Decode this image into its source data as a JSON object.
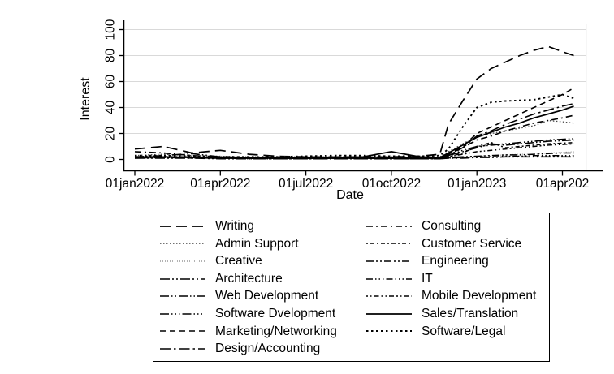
{
  "figure": {
    "background": "#ffffff",
    "axis_color": "#000000",
    "grid_color": "#d9d9d9",
    "plot_right_border_color": "#ececec"
  },
  "chart_data": {
    "type": "line",
    "title": "",
    "xlabel": "Date",
    "ylabel": "Interest",
    "grid": "horizontal",
    "legend_position": "below",
    "ylim": [
      0,
      100
    ],
    "y_ticks": [
      0,
      20,
      40,
      60,
      80,
      100
    ],
    "x_unit": "months since 01jan2022",
    "x_ticks": [
      {
        "pos": 0,
        "label": "01jan2022"
      },
      {
        "pos": 3,
        "label": "01apr2022"
      },
      {
        "pos": 6,
        "label": "01jul2022"
      },
      {
        "pos": 9,
        "label": "01oct2022"
      },
      {
        "pos": 12,
        "label": "01jan2023"
      },
      {
        "pos": 15,
        "label": "01apr202"
      }
    ],
    "x": [
      0,
      1,
      2,
      3,
      4,
      5,
      6,
      7,
      8,
      9,
      10,
      10.7,
      11,
      11.5,
      12,
      12.5,
      13,
      13.5,
      14,
      14.5,
      15,
      15.4
    ],
    "series": [
      {
        "name": "Writing",
        "dash": "long-dash",
        "color": "#000000",
        "values": [
          8,
          10,
          5,
          7,
          4,
          2.5,
          2,
          2,
          2,
          2,
          2.5,
          4,
          27,
          45,
          62,
          70,
          75,
          80,
          84,
          87,
          83,
          80
        ]
      },
      {
        "name": "Admin Support",
        "dash": "dot-fine",
        "color": "#444444",
        "values": [
          3,
          4,
          3,
          2.5,
          2,
          2,
          2,
          2,
          2,
          2,
          2,
          2,
          6,
          12,
          18,
          20,
          22,
          24,
          26,
          30,
          29,
          28
        ]
      },
      {
        "name": "Creative",
        "dash": "dot-micro",
        "color": "#999999",
        "values": [
          2,
          2.5,
          2,
          1.5,
          1.5,
          1,
          1,
          1,
          1,
          1,
          1,
          1,
          1.5,
          2,
          2.5,
          3,
          3.5,
          4,
          4,
          5,
          5.5,
          6
        ]
      },
      {
        "name": "Architecture",
        "dash": "longdash-dotdot",
        "color": "#000000",
        "values": [
          1,
          1,
          1,
          0.5,
          0.5,
          0.5,
          0.5,
          0.5,
          0.5,
          0.5,
          0.5,
          0.5,
          1,
          1,
          1.5,
          1.5,
          2,
          2,
          2,
          2,
          2,
          2
        ]
      },
      {
        "name": "Web Development",
        "dash": "longdash-dotdot-fine",
        "color": "#000000",
        "values": [
          2,
          3,
          4.5,
          2,
          1.5,
          1,
          1,
          1,
          1,
          1,
          1,
          1,
          3,
          6,
          9,
          12,
          11,
          12,
          13,
          14,
          14.5,
          15
        ]
      },
      {
        "name": "Software Dvelopment",
        "dash": "longdash-3dot",
        "color": "#000000",
        "values": [
          2,
          2,
          2,
          1.5,
          1,
          1,
          1,
          1,
          1,
          1,
          1,
          1,
          3,
          7,
          10,
          11,
          12,
          13,
          14,
          15,
          15.5,
          16
        ]
      },
      {
        "name": "Marketing/Networking",
        "dash": "dash-medium",
        "color": "#000000",
        "values": [
          2,
          2,
          1.5,
          1.5,
          1,
          1,
          1,
          1,
          1,
          1,
          1,
          1.5,
          4,
          10,
          20,
          25,
          30,
          35,
          40,
          45,
          50,
          55
        ]
      },
      {
        "name": "Design/Accounting",
        "dash": "longdash-dot",
        "color": "#000000",
        "values": [
          1.5,
          2,
          1.5,
          1,
          1,
          1,
          1,
          1,
          1,
          1,
          1,
          1,
          3,
          9,
          18,
          22,
          27,
          31,
          35,
          38,
          41,
          43
        ]
      },
      {
        "name": "Consulting",
        "dash": "dash-dot",
        "color": "#000000",
        "values": [
          6,
          5,
          3,
          2,
          1.5,
          1,
          1,
          1,
          1,
          1,
          1,
          1,
          4,
          9,
          15,
          18,
          22,
          25,
          28,
          30,
          32,
          34
        ]
      },
      {
        "name": "Customer Service",
        "dash": "dot-shortdash",
        "color": "#000000",
        "values": [
          1.5,
          2,
          1.5,
          1,
          1,
          1,
          1,
          1,
          1,
          1,
          1,
          1,
          2,
          5,
          10,
          13,
          9,
          10,
          11,
          12,
          12.5,
          13
        ]
      },
      {
        "name": "Engineering",
        "dash": "meddash-dotdot",
        "color": "#000000",
        "values": [
          1.5,
          2,
          1.5,
          1,
          1,
          1,
          1,
          1,
          1,
          1,
          1,
          1,
          1.5,
          2,
          2.5,
          3,
          3.5,
          3.5,
          4,
          4.5,
          5,
          5
        ]
      },
      {
        "name": "IT",
        "dash": "meddash-3dot",
        "color": "#000000",
        "values": [
          1,
          1.5,
          1,
          1,
          0.5,
          0.5,
          0.5,
          0.5,
          0.5,
          0.5,
          0.5,
          0.5,
          1,
          1.5,
          2,
          2,
          2.5,
          2.5,
          3,
          3,
          3,
          3
        ]
      },
      {
        "name": "Mobile Development",
        "dash": "dotdot-shortdash",
        "color": "#000000",
        "values": [
          1,
          1.5,
          1,
          1,
          1,
          1,
          1,
          1,
          1,
          1,
          1,
          1,
          2,
          4,
          6,
          7,
          8,
          9,
          10,
          11,
          11.5,
          12
        ]
      },
      {
        "name": "Sales/Translation",
        "dash": "solid",
        "color": "#000000",
        "values": [
          2,
          2,
          1.5,
          1,
          1,
          1,
          1,
          1.5,
          2,
          6,
          2,
          1.5,
          5,
          11,
          17,
          21,
          25,
          28,
          32,
          35,
          38,
          41
        ]
      },
      {
        "name": "Software/Legal",
        "dash": "dot-bold",
        "color": "#000000",
        "values": [
          3,
          3,
          2.5,
          2,
          2,
          2,
          2.5,
          3,
          3,
          2.5,
          2.5,
          3,
          8,
          25,
          40,
          44,
          45,
          45.5,
          46,
          48,
          50,
          47
        ]
      }
    ]
  },
  "legend": {
    "column_split": 8,
    "columns": [
      [
        "Writing",
        "Admin Support",
        "Creative",
        "Architecture",
        "Web Development",
        "Software Dvelopment",
        "Marketing/Networking",
        "Design/Accounting"
      ],
      [
        "Consulting",
        "Customer Service",
        "Engineering",
        "IT",
        "Mobile Development",
        "Sales/Translation",
        "Software/Legal"
      ]
    ]
  }
}
